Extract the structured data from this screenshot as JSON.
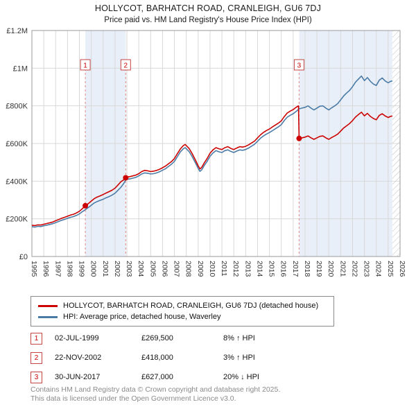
{
  "title": "HOLLYCOT, BARHATCH ROAD, CRANLEIGH, GU6 7DJ",
  "subtitle": "Price paid vs. HM Land Registry's House Price Index (HPI)",
  "chart_data": {
    "type": "line",
    "title": "HOLLYCOT, BARHATCH ROAD, CRANLEIGH, GU6 7DJ",
    "subtitle": "Price paid vs. HM Land Registry's House Price Index (HPI)",
    "x_range": [
      1995,
      2026
    ],
    "y_range": [
      0,
      1200000
    ],
    "grid": true,
    "legend_position": "bottom",
    "x_ticks": [
      1995,
      1996,
      1997,
      1998,
      1999,
      2000,
      2001,
      2002,
      2003,
      2004,
      2005,
      2006,
      2007,
      2008,
      2009,
      2010,
      2011,
      2012,
      2013,
      2014,
      2015,
      2016,
      2017,
      2018,
      2019,
      2020,
      2021,
      2022,
      2023,
      2024,
      2025,
      2026
    ],
    "y_ticks": [
      {
        "value": 0,
        "label": "£0"
      },
      {
        "value": 200000,
        "label": "£200K"
      },
      {
        "value": 400000,
        "label": "£400K"
      },
      {
        "value": 600000,
        "label": "£600K"
      },
      {
        "value": 800000,
        "label": "£800K"
      },
      {
        "value": 1000000,
        "label": "£1M"
      },
      {
        "value": 1200000,
        "label": "£1.2M"
      }
    ],
    "colors": {
      "property_line": "#cc0000",
      "hpi_line": "#4a7ba6",
      "band_fill": "#e9eff8",
      "grid": "#d8d8d8",
      "sale_dash": "#e08888",
      "plot_border": "#9a9a9a",
      "hatch": "#bbbbbb"
    },
    "bands": [
      {
        "from": 1999.5,
        "to": 2002.9
      },
      {
        "from": 2017.5,
        "to": 2025.35
      }
    ],
    "hatch_from": 2025.35,
    "sales": [
      {
        "n": "1",
        "x": 1999.5,
        "price": 269500,
        "date": "02-JUL-1999",
        "vs_hpi": "8% ↑ HPI"
      },
      {
        "n": "2",
        "x": 2002.9,
        "price": 418000,
        "date": "22-NOV-2002",
        "vs_hpi": "3% ↑ HPI"
      },
      {
        "n": "3",
        "x": 2017.5,
        "price": 627000,
        "date": "30-JUN-2017",
        "vs_hpi": "20% ↓ HPI"
      }
    ],
    "series": [
      {
        "name": "HOLLYCOT, BARHATCH ROAD, CRANLEIGH, GU6 7DJ (detached house)",
        "color": "#cc0000",
        "points": [
          [
            1995.0,
            166000
          ],
          [
            1995.25,
            164000
          ],
          [
            1995.5,
            168000
          ],
          [
            1995.75,
            167000
          ],
          [
            1996.0,
            171000
          ],
          [
            1996.25,
            175000
          ],
          [
            1996.5,
            179000
          ],
          [
            1996.75,
            183000
          ],
          [
            1997.0,
            190000
          ],
          [
            1997.25,
            196000
          ],
          [
            1997.5,
            203000
          ],
          [
            1997.75,
            208000
          ],
          [
            1998.0,
            214000
          ],
          [
            1998.25,
            220000
          ],
          [
            1998.5,
            224000
          ],
          [
            1998.75,
            231000
          ],
          [
            1999.0,
            240000
          ],
          [
            1999.25,
            254000
          ],
          [
            1999.5,
            269500
          ],
          [
            1999.75,
            281000
          ],
          [
            2000.0,
            294000
          ],
          [
            2000.25,
            307000
          ],
          [
            2000.5,
            316000
          ],
          [
            2000.75,
            322000
          ],
          [
            2001.0,
            329000
          ],
          [
            2001.25,
            337000
          ],
          [
            2001.5,
            344000
          ],
          [
            2001.75,
            352000
          ],
          [
            2002.0,
            363000
          ],
          [
            2002.25,
            380000
          ],
          [
            2002.5,
            397000
          ],
          [
            2002.75,
            408000
          ],
          [
            2002.9,
            418000
          ],
          [
            2003.0,
            422000
          ],
          [
            2003.25,
            424000
          ],
          [
            2003.5,
            428000
          ],
          [
            2003.75,
            432000
          ],
          [
            2004.0,
            440000
          ],
          [
            2004.25,
            451000
          ],
          [
            2004.5,
            457000
          ],
          [
            2004.75,
            455000
          ],
          [
            2005.0,
            451000
          ],
          [
            2005.25,
            453000
          ],
          [
            2005.5,
            457000
          ],
          [
            2005.75,
            463000
          ],
          [
            2006.0,
            471000
          ],
          [
            2006.25,
            480000
          ],
          [
            2006.5,
            492000
          ],
          [
            2006.75,
            504000
          ],
          [
            2007.0,
            520000
          ],
          [
            2007.25,
            546000
          ],
          [
            2007.5,
            571000
          ],
          [
            2007.75,
            589000
          ],
          [
            2007.9,
            595000
          ],
          [
            2008.0,
            589000
          ],
          [
            2008.25,
            572000
          ],
          [
            2008.5,
            546000
          ],
          [
            2008.75,
            515000
          ],
          [
            2009.0,
            482000
          ],
          [
            2009.15,
            465000
          ],
          [
            2009.3,
            473000
          ],
          [
            2009.5,
            496000
          ],
          [
            2009.75,
            520000
          ],
          [
            2010.0,
            548000
          ],
          [
            2010.25,
            566000
          ],
          [
            2010.5,
            578000
          ],
          [
            2010.75,
            572000
          ],
          [
            2011.0,
            568000
          ],
          [
            2011.25,
            578000
          ],
          [
            2011.5,
            583000
          ],
          [
            2011.75,
            574000
          ],
          [
            2012.0,
            568000
          ],
          [
            2012.25,
            576000
          ],
          [
            2012.5,
            583000
          ],
          [
            2012.75,
            581000
          ],
          [
            2013.0,
            585000
          ],
          [
            2013.25,
            593000
          ],
          [
            2013.5,
            603000
          ],
          [
            2013.75,
            613000
          ],
          [
            2014.0,
            630000
          ],
          [
            2014.25,
            646000
          ],
          [
            2014.5,
            659000
          ],
          [
            2014.75,
            669000
          ],
          [
            2015.0,
            677000
          ],
          [
            2015.25,
            688000
          ],
          [
            2015.5,
            698000
          ],
          [
            2015.75,
            708000
          ],
          [
            2016.0,
            720000
          ],
          [
            2016.25,
            743000
          ],
          [
            2016.5,
            762000
          ],
          [
            2016.75,
            772000
          ],
          [
            2017.0,
            780000
          ],
          [
            2017.25,
            792000
          ],
          [
            2017.45,
            800000
          ],
          [
            2017.5,
            627000
          ],
          [
            2017.75,
            630000
          ],
          [
            2018.0,
            634000
          ],
          [
            2018.25,
            640000
          ],
          [
            2018.5,
            630000
          ],
          [
            2018.75,
            622000
          ],
          [
            2019.0,
            630000
          ],
          [
            2019.25,
            638000
          ],
          [
            2019.5,
            640000
          ],
          [
            2019.75,
            630000
          ],
          [
            2020.0,
            622000
          ],
          [
            2020.25,
            632000
          ],
          [
            2020.5,
            640000
          ],
          [
            2020.75,
            650000
          ],
          [
            2021.0,
            666000
          ],
          [
            2021.25,
            682000
          ],
          [
            2021.5,
            694000
          ],
          [
            2021.75,
            706000
          ],
          [
            2022.0,
            722000
          ],
          [
            2022.25,
            741000
          ],
          [
            2022.5,
            754000
          ],
          [
            2022.75,
            766000
          ],
          [
            2023.0,
            747000
          ],
          [
            2023.25,
            760000
          ],
          [
            2023.5,
            744000
          ],
          [
            2023.75,
            733000
          ],
          [
            2024.0,
            726000
          ],
          [
            2024.25,
            749000
          ],
          [
            2024.5,
            758000
          ],
          [
            2024.75,
            746000
          ],
          [
            2025.0,
            738000
          ],
          [
            2025.2,
            744000
          ],
          [
            2025.35,
            746000
          ]
        ]
      },
      {
        "name": "HPI: Average price, detached house, Waverley",
        "color": "#4a7ba6",
        "points": [
          [
            1995.0,
            158000
          ],
          [
            1995.25,
            156000
          ],
          [
            1995.5,
            160000
          ],
          [
            1995.75,
            159000
          ],
          [
            1996.0,
            163000
          ],
          [
            1996.25,
            166000
          ],
          [
            1996.5,
            170000
          ],
          [
            1996.75,
            174000
          ],
          [
            1997.0,
            180000
          ],
          [
            1997.25,
            186000
          ],
          [
            1997.5,
            192000
          ],
          [
            1997.75,
            197000
          ],
          [
            1998.0,
            203000
          ],
          [
            1998.25,
            208000
          ],
          [
            1998.5,
            212000
          ],
          [
            1998.75,
            218000
          ],
          [
            1999.0,
            226000
          ],
          [
            1999.25,
            238000
          ],
          [
            1999.5,
            249000
          ],
          [
            1999.75,
            260000
          ],
          [
            2000.0,
            272000
          ],
          [
            2000.25,
            284000
          ],
          [
            2000.5,
            292000
          ],
          [
            2000.75,
            298000
          ],
          [
            2001.0,
            304000
          ],
          [
            2001.25,
            312000
          ],
          [
            2001.5,
            318000
          ],
          [
            2001.75,
            326000
          ],
          [
            2002.0,
            336000
          ],
          [
            2002.25,
            352000
          ],
          [
            2002.5,
            368000
          ],
          [
            2002.75,
            390000
          ],
          [
            2002.9,
            406000
          ],
          [
            2003.0,
            410000
          ],
          [
            2003.25,
            412000
          ],
          [
            2003.5,
            416000
          ],
          [
            2003.75,
            420000
          ],
          [
            2004.0,
            428000
          ],
          [
            2004.25,
            438000
          ],
          [
            2004.5,
            444000
          ],
          [
            2004.75,
            442000
          ],
          [
            2005.0,
            438000
          ],
          [
            2005.25,
            440000
          ],
          [
            2005.5,
            444000
          ],
          [
            2005.75,
            450000
          ],
          [
            2006.0,
            458000
          ],
          [
            2006.25,
            466000
          ],
          [
            2006.5,
            478000
          ],
          [
            2006.75,
            490000
          ],
          [
            2007.0,
            505000
          ],
          [
            2007.25,
            530000
          ],
          [
            2007.5,
            555000
          ],
          [
            2007.75,
            572000
          ],
          [
            2007.9,
            578000
          ],
          [
            2008.0,
            572000
          ],
          [
            2008.25,
            556000
          ],
          [
            2008.5,
            530000
          ],
          [
            2008.75,
            500000
          ],
          [
            2009.0,
            468000
          ],
          [
            2009.15,
            452000
          ],
          [
            2009.3,
            460000
          ],
          [
            2009.5,
            482000
          ],
          [
            2009.75,
            505000
          ],
          [
            2010.0,
            532000
          ],
          [
            2010.25,
            550000
          ],
          [
            2010.5,
            562000
          ],
          [
            2010.75,
            556000
          ],
          [
            2011.0,
            552000
          ],
          [
            2011.25,
            562000
          ],
          [
            2011.5,
            566000
          ],
          [
            2011.75,
            558000
          ],
          [
            2012.0,
            552000
          ],
          [
            2012.25,
            560000
          ],
          [
            2012.5,
            566000
          ],
          [
            2012.75,
            564000
          ],
          [
            2013.0,
            568000
          ],
          [
            2013.25,
            576000
          ],
          [
            2013.5,
            586000
          ],
          [
            2013.75,
            596000
          ],
          [
            2014.0,
            612000
          ],
          [
            2014.25,
            628000
          ],
          [
            2014.5,
            640000
          ],
          [
            2014.75,
            650000
          ],
          [
            2015.0,
            658000
          ],
          [
            2015.25,
            668000
          ],
          [
            2015.5,
            678000
          ],
          [
            2015.75,
            688000
          ],
          [
            2016.0,
            700000
          ],
          [
            2016.25,
            722000
          ],
          [
            2016.5,
            740000
          ],
          [
            2016.75,
            750000
          ],
          [
            2017.0,
            758000
          ],
          [
            2017.25,
            770000
          ],
          [
            2017.5,
            784000
          ],
          [
            2017.75,
            788000
          ],
          [
            2018.0,
            792000
          ],
          [
            2018.25,
            800000
          ],
          [
            2018.5,
            788000
          ],
          [
            2018.75,
            778000
          ],
          [
            2019.0,
            788000
          ],
          [
            2019.25,
            798000
          ],
          [
            2019.5,
            800000
          ],
          [
            2019.75,
            788000
          ],
          [
            2020.0,
            778000
          ],
          [
            2020.25,
            790000
          ],
          [
            2020.5,
            800000
          ],
          [
            2020.75,
            812000
          ],
          [
            2021.0,
            832000
          ],
          [
            2021.25,
            852000
          ],
          [
            2021.5,
            868000
          ],
          [
            2021.75,
            882000
          ],
          [
            2022.0,
            902000
          ],
          [
            2022.25,
            926000
          ],
          [
            2022.5,
            942000
          ],
          [
            2022.75,
            958000
          ],
          [
            2023.0,
            934000
          ],
          [
            2023.25,
            950000
          ],
          [
            2023.5,
            930000
          ],
          [
            2023.75,
            916000
          ],
          [
            2024.0,
            908000
          ],
          [
            2024.25,
            936000
          ],
          [
            2024.5,
            948000
          ],
          [
            2024.75,
            932000
          ],
          [
            2025.0,
            922000
          ],
          [
            2025.2,
            930000
          ],
          [
            2025.35,
            932000
          ]
        ]
      }
    ]
  },
  "legend": {
    "items": [
      {
        "label": "HOLLYCOT, BARHATCH ROAD, CRANLEIGH, GU6 7DJ (detached house)",
        "color": "#cc0000"
      },
      {
        "label": "HPI: Average price, detached house, Waverley",
        "color": "#4a7ba6"
      }
    ]
  },
  "table": {
    "rows": [
      {
        "num": "1",
        "date": "02-JUL-1999",
        "price": "£269,500",
        "hpi": "8% ↑ HPI"
      },
      {
        "num": "2",
        "date": "22-NOV-2002",
        "price": "£418,000",
        "hpi": "3% ↑ HPI"
      },
      {
        "num": "3",
        "date": "30-JUN-2017",
        "price": "£627,000",
        "hpi": "20% ↓ HPI"
      }
    ]
  },
  "footer": {
    "line1": "Contains HM Land Registry data © Crown copyright and database right 2025.",
    "line2": "This data is licensed under the Open Government Licence v3.0."
  }
}
